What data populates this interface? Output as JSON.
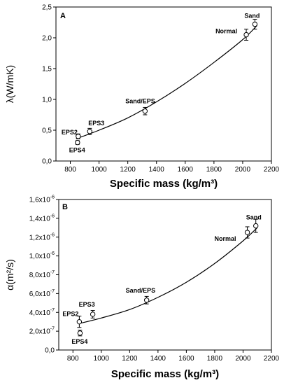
{
  "chart_data": [
    {
      "type": "scatter",
      "panel_label": "A",
      "ylabel": "λ(W/mK)",
      "xlabel": "Specific mass (kg/m³)",
      "xlim": [
        700,
        2200
      ],
      "ylim": [
        0,
        2.5
      ],
      "x_ticks": [
        800,
        1000,
        1200,
        1400,
        1600,
        1800,
        2000,
        2200
      ],
      "y_ticks": [
        {
          "value": 0.0,
          "label": "0,0"
        },
        {
          "value": 0.5,
          "label": "0,5"
        },
        {
          "value": 1.0,
          "label": "1,0"
        },
        {
          "value": 1.5,
          "label": "1,5"
        },
        {
          "value": 2.0,
          "label": "2,0"
        },
        {
          "value": 2.5,
          "label": "2,5"
        }
      ],
      "points": [
        {
          "label": "EPS4",
          "x": 850,
          "y": 0.3,
          "err": 0.03
        },
        {
          "label": "EPS2",
          "x": 855,
          "y": 0.4,
          "err": 0.04
        },
        {
          "label": "EPS3",
          "x": 935,
          "y": 0.48,
          "err": 0.05
        },
        {
          "label": "Sand/EPS",
          "x": 1320,
          "y": 0.81,
          "err": 0.06
        },
        {
          "label": "Normal",
          "x": 2025,
          "y": 2.05,
          "err": 0.09
        },
        {
          "label": "Sand",
          "x": 2085,
          "y": 2.22,
          "err": 0.08
        }
      ],
      "curve": {
        "type": "exponential",
        "points": [
          [
            840,
            0.36
          ],
          [
            1000,
            0.5
          ],
          [
            1200,
            0.7
          ],
          [
            1400,
            0.96
          ],
          [
            1600,
            1.26
          ],
          [
            1800,
            1.6
          ],
          [
            2000,
            1.97
          ],
          [
            2100,
            2.2
          ]
        ]
      }
    },
    {
      "type": "scatter",
      "panel_label": "B",
      "ylabel": "α(m²/s)",
      "xlabel": "Specific mass (kg/m³)",
      "xlim": [
        700,
        2200
      ],
      "ylim": [
        0,
        1.6e-06
      ],
      "x_ticks": [
        800,
        1000,
        1200,
        1400,
        1600,
        1800,
        2000,
        2200
      ],
      "y_ticks": [
        {
          "value": 0.0,
          "mant": "0,0",
          "exp": ""
        },
        {
          "value": 2e-07,
          "mant": "2,0x10",
          "exp": "-7"
        },
        {
          "value": 4e-07,
          "mant": "4,0x10",
          "exp": "-7"
        },
        {
          "value": 6e-07,
          "mant": "6,0x10",
          "exp": "-7"
        },
        {
          "value": 8e-07,
          "mant": "8,0x10",
          "exp": "-7"
        },
        {
          "value": 1e-06,
          "mant": "1,0x10",
          "exp": "-6"
        },
        {
          "value": 1.2e-06,
          "mant": "1,2x10",
          "exp": "-6"
        },
        {
          "value": 1.4e-06,
          "mant": "1,4x10",
          "exp": "-6"
        },
        {
          "value": 1.6e-06,
          "mant": "1,6x10",
          "exp": "-6"
        }
      ],
      "points": [
        {
          "label": "EPS4",
          "x": 850,
          "y": 1.8e-07,
          "err": 3e-08
        },
        {
          "label": "EPS2",
          "x": 845,
          "y": 3e-07,
          "err": 6e-08
        },
        {
          "label": "EPS3",
          "x": 940,
          "y": 3.8e-07,
          "err": 4e-08
        },
        {
          "label": "Sand/EPS",
          "x": 1320,
          "y": 5.3e-07,
          "err": 4e-08
        },
        {
          "label": "Normal",
          "x": 2030,
          "y": 1.25e-06,
          "err": 6e-08
        },
        {
          "label": "Sand",
          "x": 2090,
          "y": 1.32e-06,
          "err": 7e-08
        }
      ],
      "curve": {
        "type": "exponential",
        "points": [
          [
            840,
            2.8e-07
          ],
          [
            1000,
            3.4e-07
          ],
          [
            1200,
            4.3e-07
          ],
          [
            1400,
            5.6e-07
          ],
          [
            1600,
            7.2e-07
          ],
          [
            1800,
            9.2e-07
          ],
          [
            2000,
            1.16e-06
          ],
          [
            2100,
            1.3e-06
          ]
        ]
      }
    }
  ]
}
